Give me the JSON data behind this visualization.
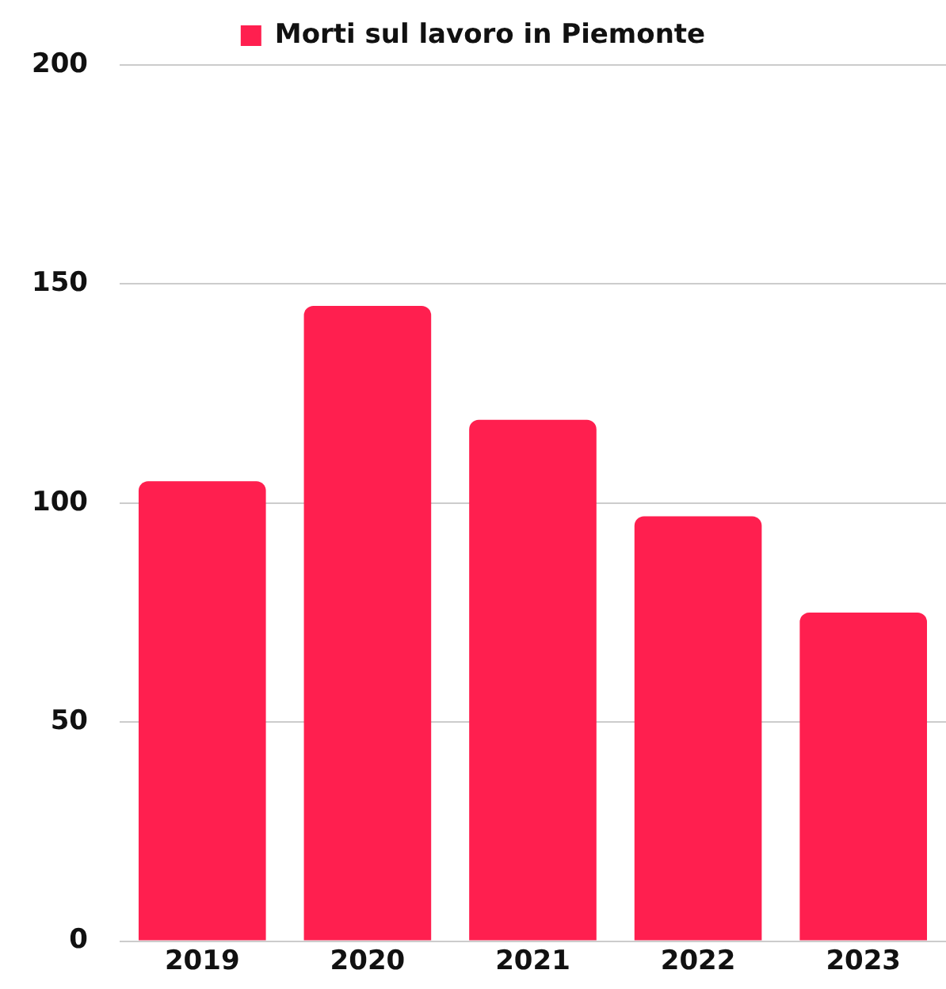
{
  "chart_data": {
    "type": "bar",
    "categories": [
      "2019",
      "2020",
      "2021",
      "2022",
      "2023"
    ],
    "series": [
      {
        "name": "Morti sul lavoro in Piemonte",
        "color": "#ff1f4f",
        "values": [
          105,
          145,
          119,
          97,
          75
        ]
      }
    ],
    "ylim": [
      0,
      200
    ],
    "yticks": [
      0,
      50,
      100,
      150,
      200
    ],
    "grid": "y",
    "legend": "top"
  }
}
